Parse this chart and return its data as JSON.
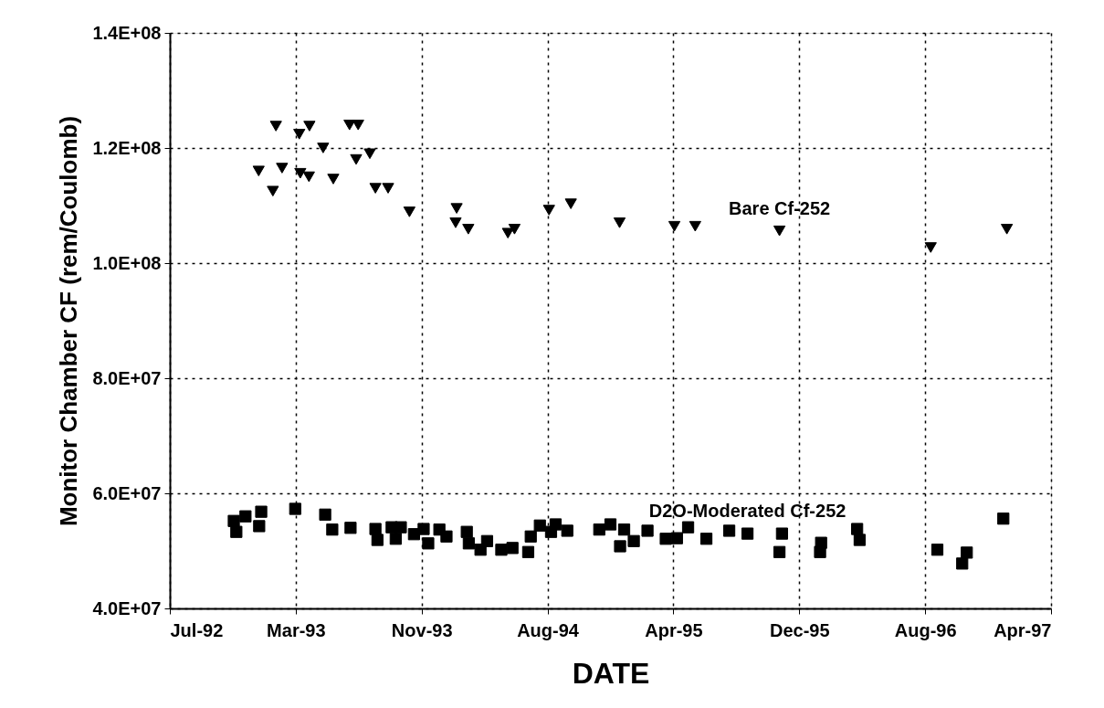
{
  "chart_data": {
    "type": "scatter",
    "xlabel": "DATE",
    "ylabel": "Monitor Chamber CF (rem/Coulomb)",
    "xlim": [
      "1992-07-20",
      "1997-04-21"
    ],
    "xticks": [
      {
        "value": "1992-07-20",
        "label": "Jul-92"
      },
      {
        "value": "1993-03-25",
        "label": "Mar-93"
      },
      {
        "value": "1993-11-28",
        "label": "Nov-93"
      },
      {
        "value": "1994-08-03",
        "label": "Aug-94"
      },
      {
        "value": "1995-04-08",
        "label": "Apr-95"
      },
      {
        "value": "1995-12-12",
        "label": "Dec-95"
      },
      {
        "value": "1996-08-16",
        "label": "Aug-96"
      },
      {
        "value": "1997-04-21",
        "label": "Apr-97"
      }
    ],
    "ylim": [
      40000000,
      140000000
    ],
    "yticks": [
      {
        "value": 40000000,
        "label": "4.0E+07"
      },
      {
        "value": 60000000,
        "label": "6.0E+07"
      },
      {
        "value": 80000000,
        "label": "8.0E+07"
      },
      {
        "value": 100000000,
        "label": "1.0E+08"
      },
      {
        "value": 120000000,
        "label": "1.2E+08"
      },
      {
        "value": 140000000,
        "label": "1.4E+08"
      }
    ],
    "grid": true,
    "series": [
      {
        "name": "Bare Cf-252",
        "color": "#000000",
        "marker": "triangle",
        "x": [
          "1993-02-14",
          "1993-04-01",
          "1993-04-21",
          "1993-05-18",
          "1993-07-09",
          "1993-07-26",
          "1993-07-22",
          "1993-08-18",
          "1993-01-11",
          "1993-02-26",
          "1993-04-03",
          "1993-04-20",
          "1993-06-07",
          "1993-02-08",
          "1993-08-29",
          "1993-09-23",
          "1993-11-04",
          "1994-02-05",
          "1994-02-03",
          "1994-02-28",
          "1994-05-17",
          "1994-05-30",
          "1994-08-06",
          "1994-09-18",
          "1994-12-23",
          "1995-04-10",
          "1995-05-21",
          "1995-11-03",
          "1996-08-27",
          "1997-01-24"
        ],
        "values": [
          123800000,
          122400000,
          123800000,
          120000000,
          124000000,
          124000000,
          118000000,
          119000000,
          116000000,
          116500000,
          115600000,
          115000000,
          114600000,
          112500000,
          113000000,
          113000000,
          108900000,
          109500000,
          107000000,
          105900000,
          105200000,
          105900000,
          109200000,
          110300000,
          107000000,
          106400000,
          106400000,
          105600000,
          102700000,
          105900000
        ]
      },
      {
        "name": "D2O-Moderated Cf-252",
        "color": "#000000",
        "marker": "square",
        "x": [
          "1992-11-23",
          "1992-11-28",
          "1992-12-16",
          "1993-01-16",
          "1993-01-12",
          "1993-03-24",
          "1993-05-22",
          "1993-06-05",
          "1993-07-11",
          "1993-08-29",
          "1993-09-02",
          "1993-09-30",
          "1993-10-08",
          "1993-10-18",
          "1993-11-13",
          "1993-12-02",
          "1993-12-11",
          "1994-01-02",
          "1994-01-16",
          "1994-02-25",
          "1994-03-01",
          "1994-03-24",
          "1994-04-06",
          "1994-05-04",
          "1994-05-26",
          "1994-06-26",
          "1994-07-01",
          "1994-07-19",
          "1994-08-10",
          "1994-08-19",
          "1994-09-11",
          "1994-11-13",
          "1994-12-05",
          "1994-12-24",
          "1995-01-01",
          "1995-01-20",
          "1995-02-16",
          "1995-03-24",
          "1995-04-15",
          "1995-05-07",
          "1995-06-12",
          "1995-07-27",
          "1995-09-01",
          "1995-11-08",
          "1995-11-03",
          "1996-01-24",
          "1996-01-22",
          "1996-04-04",
          "1996-04-09",
          "1996-09-09",
          "1996-11-06",
          "1996-10-28",
          "1997-01-17"
        ],
        "values": [
          55200000,
          53300000,
          56000000,
          56800000,
          54300000,
          57300000,
          56300000,
          53700000,
          54000000,
          53800000,
          51900000,
          54100000,
          52100000,
          54100000,
          52900000,
          53800000,
          51300000,
          53700000,
          52500000,
          53300000,
          51300000,
          50200000,
          51700000,
          50200000,
          50500000,
          49800000,
          52500000,
          54400000,
          53300000,
          54600000,
          53500000,
          53700000,
          54600000,
          50800000,
          53700000,
          51700000,
          53500000,
          52100000,
          52200000,
          54100000,
          52100000,
          53500000,
          53000000,
          53000000,
          49800000,
          51400000,
          49800000,
          53800000,
          51900000,
          50200000,
          49700000,
          47800000,
          55600000
        ]
      }
    ]
  }
}
